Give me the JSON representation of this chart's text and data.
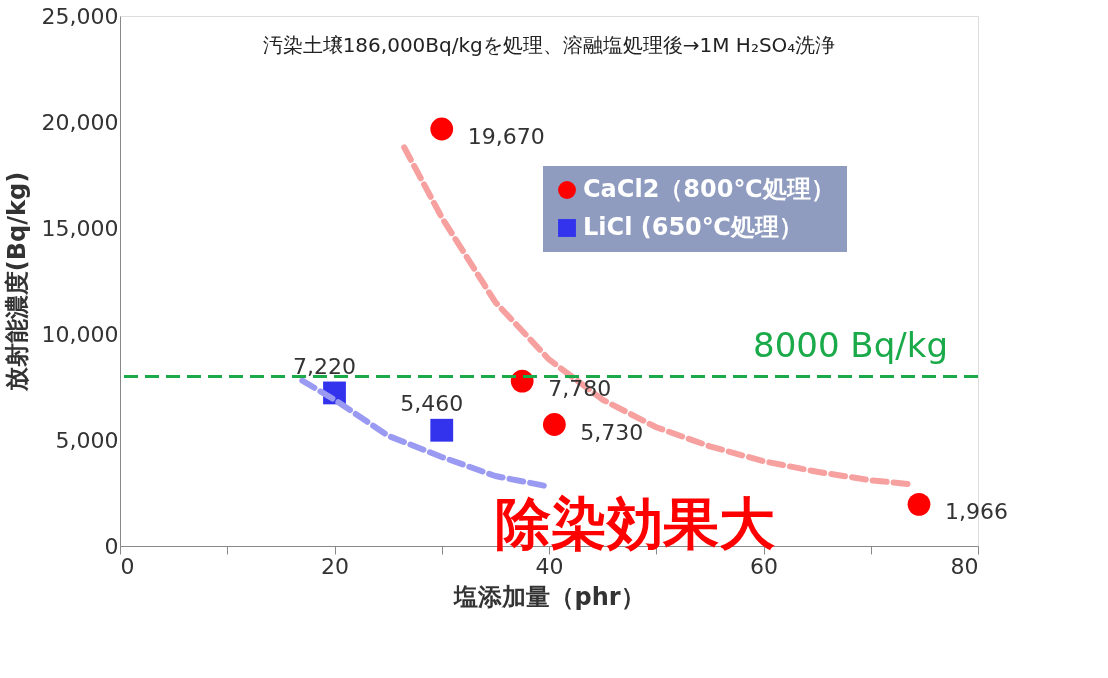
{
  "chart_data": {
    "type": "scatter",
    "xlabel": "塩添加量（phr）",
    "ylabel": "放射能濃度(Bq/kg)",
    "annotations": [
      "汚染土壌186,000Bq/kgを処理、溶融塩処理後→1M H₂SO₄洗浄",
      "除染効果大"
    ],
    "xlim": [
      0,
      80
    ],
    "ylim": [
      0,
      25000
    ],
    "xticks": [
      0,
      {
        "value": 10,
        "label": null
      },
      20,
      {
        "value": 30,
        "label": null
      },
      40,
      {
        "value": 50,
        "label": null
      },
      60,
      {
        "value": 70,
        "label": null
      },
      80
    ],
    "yticks": [
      {
        "value": 0,
        "label": "0"
      },
      {
        "value": 5000,
        "label": "5,000"
      },
      {
        "value": 10000,
        "label": "10,000"
      },
      {
        "value": 15000,
        "label": "15,000"
      },
      {
        "value": 20000,
        "label": "20,000"
      },
      {
        "value": 25000,
        "label": "25,000"
      }
    ],
    "grid": false,
    "legend": "top right",
    "ref_lines": [
      {
        "axis": "y",
        "value": 8000,
        "label": "8000 Bq/kg",
        "color": "#1aaa4a",
        "line_style": "dashed"
      }
    ],
    "series": [
      {
        "name": "CaCl2（800℃処理）",
        "marker": "circle",
        "color": "#ff0000",
        "x": [
          30,
          37.5,
          40.5,
          74.5
        ],
        "values": [
          19670,
          7780,
          5730,
          1966
        ],
        "value_labels": [
          "19,670",
          "7,780",
          "5,730",
          "1,966"
        ]
      },
      {
        "name": "LiCl (650℃処理）",
        "marker": "square",
        "color": "#3333ee",
        "x": [
          20,
          30
        ],
        "values": [
          7220,
          5460
        ],
        "value_labels": [
          "7,220",
          "5,460"
        ]
      },
      {
        "type": "line",
        "line_style": "dashed",
        "color": "#f7a0a0",
        "x": [
          26.5,
          30,
          35,
          40,
          45,
          50,
          55,
          60,
          65,
          70,
          74
        ],
        "values": [
          18800,
          15500,
          11500,
          8800,
          6900,
          5600,
          4700,
          4000,
          3500,
          3100,
          2900
        ]
      },
      {
        "type": "line",
        "line_style": "dashed",
        "color": "#9a9af2",
        "x": [
          17,
          20,
          25,
          30,
          35,
          40
        ],
        "values": [
          7800,
          6900,
          5200,
          4200,
          3300,
          2800
        ]
      }
    ]
  }
}
